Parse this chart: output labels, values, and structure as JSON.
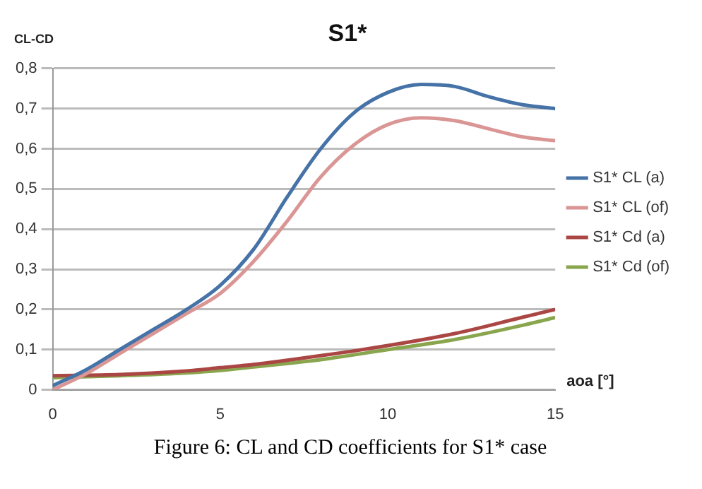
{
  "chart_data": {
    "type": "line",
    "title": "S1*",
    "xlabel": "aoa [°]",
    "ylabel": "CL-CD",
    "annotations": [
      "Figure 6: CL and CD coefficients for S1* case"
    ],
    "series": [
      {
        "name": "S1* CL (a)",
        "color": "#4572a7",
        "x": [
          0,
          1,
          2,
          3,
          4,
          5,
          6,
          7,
          8,
          9,
          10,
          11,
          12,
          13,
          14,
          15
        ],
        "values": [
          0.01,
          0.05,
          0.1,
          0.15,
          0.2,
          0.26,
          0.35,
          0.48,
          0.6,
          0.69,
          0.74,
          0.76,
          0.755,
          0.73,
          0.71,
          0.7
        ]
      },
      {
        "name": "S1* CL (of)",
        "color": "#da9694",
        "x": [
          0,
          1,
          2,
          3,
          4,
          5,
          6,
          7,
          8,
          9,
          10,
          11,
          12,
          13,
          14,
          15
        ],
        "values": [
          0,
          0.04,
          0.09,
          0.14,
          0.19,
          0.24,
          0.32,
          0.42,
          0.53,
          0.61,
          0.66,
          0.677,
          0.67,
          0.65,
          0.63,
          0.62
        ]
      },
      {
        "name": "S1* Cd (a)",
        "color": "#aa4643",
        "x": [
          0,
          2,
          4,
          5,
          6,
          8,
          10,
          12,
          14,
          15
        ],
        "values": [
          0.035,
          0.038,
          0.047,
          0.055,
          0.063,
          0.085,
          0.11,
          0.14,
          0.18,
          0.2
        ]
      },
      {
        "name": "S1* Cd (of)",
        "color": "#89a54e",
        "x": [
          0,
          2,
          4,
          5,
          6,
          8,
          10,
          12,
          14,
          15
        ],
        "values": [
          0.03,
          0.035,
          0.042,
          0.048,
          0.057,
          0.075,
          0.1,
          0.125,
          0.16,
          0.18
        ]
      }
    ],
    "xlim": [
      0,
      15
    ],
    "xticks": [
      0,
      5,
      10,
      15
    ],
    "ylim": [
      0,
      0.8
    ],
    "yticks": [
      0,
      {
        "value": 0.1,
        "label": "0,1"
      },
      {
        "value": 0.2,
        "label": "0,2"
      },
      {
        "value": 0.3,
        "label": "0,3"
      },
      {
        "value": 0.4,
        "label": "0,4"
      },
      {
        "value": 0.5,
        "label": "0,5"
      },
      {
        "value": 0.6,
        "label": "0,6"
      },
      {
        "value": 0.7,
        "label": "0,7"
      },
      {
        "value": 0.8,
        "label": "0,8"
      }
    ],
    "grid": "y",
    "legend": "right",
    "marker": "none",
    "line_style": "solid"
  }
}
